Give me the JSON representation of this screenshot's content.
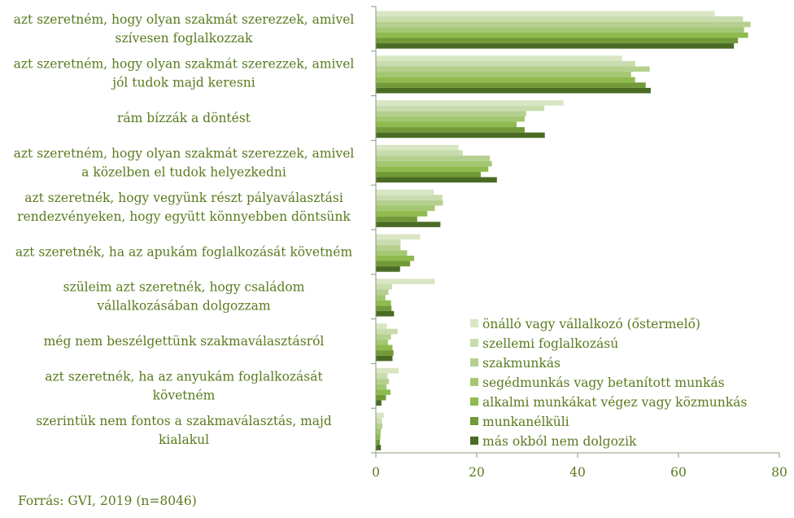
{
  "source": "Forrás: GVI, 2019 (n=8046)",
  "chart_data": {
    "type": "bar",
    "orientation": "horizontal",
    "categories": [
      [
        "azt szeretném, hogy olyan szakmát szerezzek, amivel",
        "szívesen foglalkozzak"
      ],
      [
        "azt szeretném, hogy olyan szakmát szerezzek, amivel",
        "jól tudok majd keresni"
      ],
      [
        "rám bízzák a döntést"
      ],
      [
        "azt szeretném, hogy olyan szakmát szerezzek, amivel",
        "a közelben el tudok helyezkedni"
      ],
      [
        "azt szeretnék, hogy vegyünk részt pályaválasztási",
        "rendezvényeken, hogy együtt könnyebben döntsünk"
      ],
      [
        "azt szeretnék, ha az apukám foglalkozását követném"
      ],
      [
        "szüleim azt szeretnék, hogy családom",
        "vállalkozásában dolgozzam"
      ],
      [
        "még nem beszélgettünk szakmaválasztásról"
      ],
      [
        "azt szeretnék, ha az anyukám foglalkozását",
        "követném"
      ],
      [
        "szerintük nem fontos a szakmaválasztás, majd",
        "kialakul"
      ]
    ],
    "series": [
      {
        "name": "önálló vagy vállalkozó (őstermelő)",
        "color": "#d9e6c4",
        "values": [
          67.2,
          48.8,
          37.2,
          16.4,
          11.5,
          8.8,
          11.7,
          2.2,
          4.5,
          1.6
        ]
      },
      {
        "name": "szellemi foglalkozású",
        "color": "#c9dcae",
        "values": [
          72.8,
          51.4,
          33.4,
          17.2,
          13.2,
          4.9,
          3.2,
          4.3,
          2.3,
          1.2
        ]
      },
      {
        "name": "szakmunkás",
        "color": "#b5d08e",
        "values": [
          74.3,
          54.3,
          29.8,
          22.6,
          13.3,
          4.9,
          2.5,
          3.0,
          2.6,
          1.3
        ]
      },
      {
        "name": "segédmunkás vagy betanított munkás",
        "color": "#a3c772",
        "values": [
          73.0,
          50.6,
          29.5,
          23.0,
          11.7,
          6.2,
          1.9,
          2.4,
          2.1,
          1.0
        ]
      },
      {
        "name": "alkalmi munkákat végez vagy közmunkás",
        "color": "#8fbb4e",
        "values": [
          73.8,
          51.4,
          27.9,
          22.3,
          10.2,
          7.6,
          3.0,
          3.3,
          2.9,
          0.9
        ]
      },
      {
        "name": "munkanélküli",
        "color": "#729a38",
        "values": [
          71.8,
          53.5,
          29.5,
          20.8,
          8.2,
          6.8,
          3.1,
          3.5,
          2.0,
          0.8
        ]
      },
      {
        "name": "más okból nem dolgozik",
        "color": "#4a6b24",
        "values": [
          71.0,
          54.5,
          33.5,
          24.0,
          12.8,
          4.8,
          3.6,
          3.3,
          1.1,
          1.0
        ]
      }
    ],
    "xlim": [
      0,
      80
    ],
    "xticks": [
      0,
      20,
      40,
      60,
      80
    ],
    "legend_position": "bottom-right"
  }
}
